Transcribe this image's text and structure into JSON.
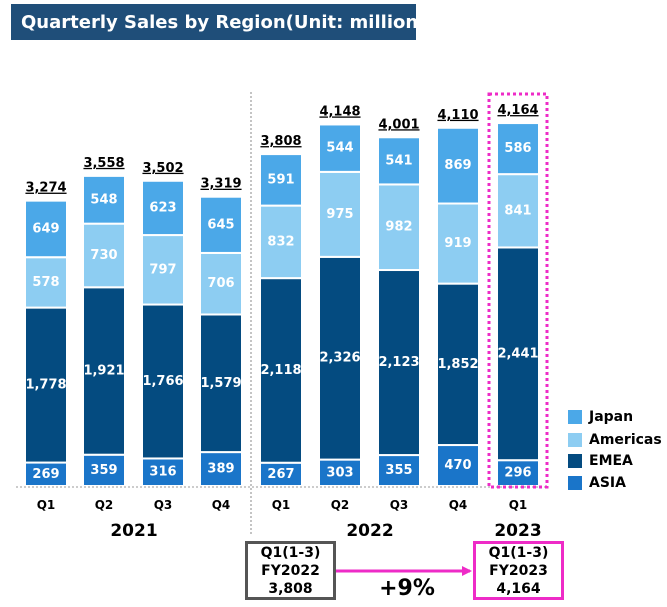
{
  "title": "Quarterly Sales by Region(Unit: million yen)",
  "colors": {
    "Japan": "#4BA8E8",
    "Americas": "#8DCDF2",
    "EMEA": "#044B80",
    "ASIA": "#1A75C9",
    "title_bg": "#1F4E79",
    "highlight": "#EE2BC7",
    "compare_border_old": "#555555"
  },
  "chart_data": {
    "type": "bar",
    "stacked": true,
    "title": "Quarterly Sales by Region(Unit: million yen)",
    "categories": [
      {
        "quarter": "Q1",
        "year": "2021"
      },
      {
        "quarter": "Q2",
        "year": "2021"
      },
      {
        "quarter": "Q3",
        "year": "2021"
      },
      {
        "quarter": "Q4",
        "year": "2021"
      },
      {
        "quarter": "Q1",
        "year": "2022"
      },
      {
        "quarter": "Q2",
        "year": "2022"
      },
      {
        "quarter": "Q3",
        "year": "2022"
      },
      {
        "quarter": "Q4",
        "year": "2022"
      },
      {
        "quarter": "Q1",
        "year": "2023"
      }
    ],
    "years": [
      "2021",
      "2022",
      "2023"
    ],
    "series": [
      {
        "name": "ASIA",
        "values": [
          269,
          359,
          316,
          389,
          267,
          303,
          355,
          470,
          296
        ]
      },
      {
        "name": "EMEA",
        "values": [
          1778,
          1921,
          1766,
          1579,
          2118,
          2326,
          2123,
          1852,
          2441
        ]
      },
      {
        "name": "Americas",
        "values": [
          578,
          730,
          797,
          706,
          832,
          975,
          982,
          919,
          841
        ]
      },
      {
        "name": "Japan",
        "values": [
          649,
          548,
          623,
          645,
          591,
          544,
          541,
          869,
          586
        ]
      }
    ],
    "totals": [
      "3,274",
      "3,558",
      "3,502",
      "3,319",
      "3,808",
      "4,148",
      "4,001",
      "4,110",
      "4,164"
    ],
    "legend_order": [
      "Japan",
      "Americas",
      "EMEA",
      "ASIA"
    ],
    "legend_position": "right",
    "highlighted_category_index": 8,
    "ylim": [
      0,
      4500
    ],
    "grid": false
  },
  "comparison": {
    "previous": {
      "line1": "Q1(1-3)",
      "line2": "FY2022",
      "line3": "3,808"
    },
    "current": {
      "line1": "Q1(1-3)",
      "line2": "FY2023",
      "line3": "4,164"
    },
    "growth": "+9%"
  }
}
